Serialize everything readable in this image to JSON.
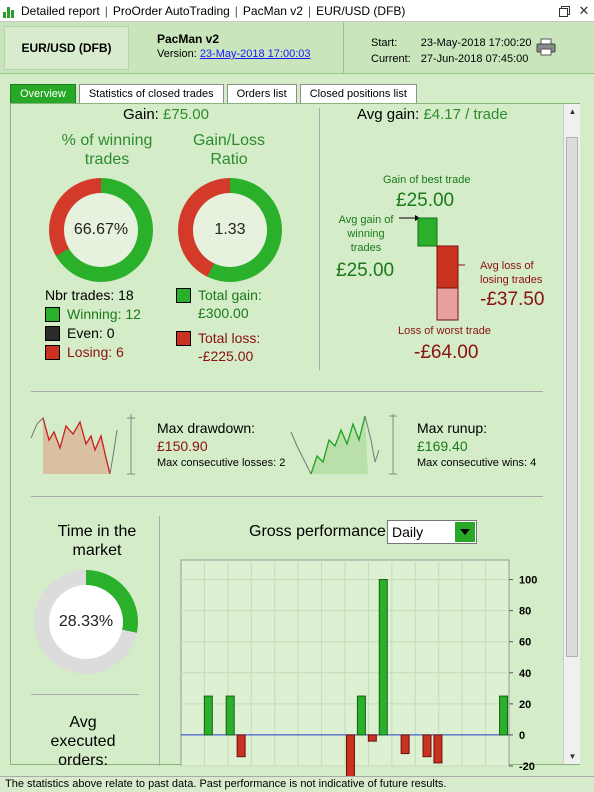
{
  "titlebar": {
    "app_icon": "bar-chart-icon",
    "parts": [
      "Detailed report",
      "ProOrder AutoTrading",
      "PacMan v2",
      "EUR/USD (DFB)"
    ],
    "buttons": [
      "restore-icon",
      "close-icon"
    ]
  },
  "header": {
    "instrument": "EUR/USD (DFB)",
    "strategy_name": "PacMan v2",
    "version_label": "Version:",
    "version_value": "23-May-2018 17:00:03",
    "start_label": "Start:",
    "start_value": "23-May-2018 17:00:20",
    "current_label": "Current:",
    "current_value": "27-Jun-2018 07:45:00",
    "print_icon": "printer-icon"
  },
  "tabs": [
    "Overview",
    "Statistics of closed trades",
    "Orders list",
    "Closed positions list"
  ],
  "active_tab": 0,
  "gain": {
    "label": "Gain:",
    "value": "£75.00"
  },
  "winning": {
    "title_line1": "% of winning",
    "title_line2": "trades",
    "value_text": "66.67%",
    "fraction": 0.6667
  },
  "ratio": {
    "title_line1": "Gain/Loss",
    "title_line2": "Ratio",
    "value_text": "1.33",
    "fraction": 0.5714
  },
  "trades": {
    "nbr_label": "Nbr trades: 18",
    "winning_label": "Winning: 12",
    "even_label": "Even: 0",
    "losing_label": "Losing: 6",
    "total_gain_label": "Total gain:",
    "total_gain_value": "£300.00",
    "total_loss_label": "Total loss:",
    "total_loss_value": "-£225.00"
  },
  "avg": {
    "label": "Avg gain:",
    "value": "£4.17 / trade",
    "best_label": "Gain of best trade",
    "best_value": "£25.00",
    "avg_gain_line1": "Avg gain of",
    "avg_gain_line2": "winning",
    "avg_gain_line3": "trades",
    "avg_gain_value": "£25.00",
    "avg_loss_line1": "Avg loss of",
    "avg_loss_line2": "losing trades",
    "avg_loss_value": "-£37.50",
    "worst_label": "Loss of worst trade",
    "worst_value": "-£64.00"
  },
  "drawdown": {
    "label": "Max drawdown:",
    "value": "£150.90",
    "sub": "Max consecutive losses: 2"
  },
  "runup": {
    "label": "Max runup:",
    "value": "£169.40",
    "sub": "Max consecutive wins: 4"
  },
  "market": {
    "title_line1": "Time in the",
    "title_line2": "market",
    "value_text": "28.33%",
    "fraction": 0.2833
  },
  "executed": {
    "line1": "Avg",
    "line2": "executed",
    "line3": "orders:"
  },
  "gross": {
    "title": "Gross performance",
    "period": "Daily"
  },
  "colors": {
    "gain": "#2e8b2e",
    "loss": "#8b1010",
    "bar_green": "#2ab02a",
    "bar_red": "#c8321e"
  },
  "chart_data": {
    "type": "bar",
    "title": "Gross performance",
    "ylim": [
      -20,
      110
    ],
    "yticks": [
      100,
      80,
      60,
      40,
      20,
      0,
      -20
    ],
    "values": [
      0,
      0,
      25,
      0,
      25,
      -14,
      0,
      0,
      0,
      0,
      0,
      0,
      0,
      0,
      0,
      -28,
      25,
      -4,
      100,
      0,
      -12,
      0,
      -14,
      -18,
      0,
      0,
      0,
      0,
      0,
      25
    ]
  },
  "footer": "The statistics above relate to past data. Past performance is not indicative of future results."
}
